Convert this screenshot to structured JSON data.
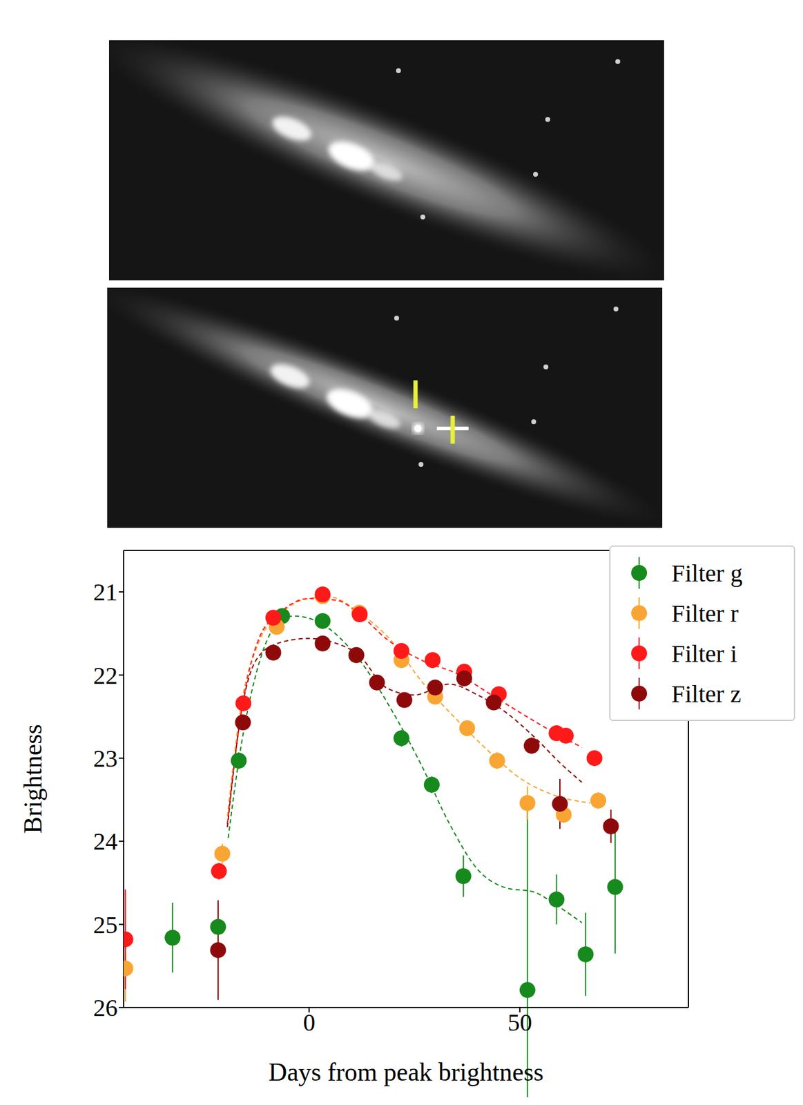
{
  "chart_data": {
    "type": "scatter",
    "x_label": "Days from peak brightness",
    "y_label": "Brightness",
    "xlim": [
      -44,
      90
    ],
    "xticks": [
      0,
      50
    ],
    "ylim": [
      26,
      20.5
    ],
    "yticks": [
      21,
      22,
      23,
      24,
      25,
      26
    ],
    "legend": "upper right",
    "series": [
      {
        "name": "Filter g",
        "color": "#168a1c",
        "marker": "o",
        "x": [
          -32.4,
          -21.6,
          -16.7,
          -6.4,
          3.2,
          11.2,
          21.9,
          29.1,
          36.6,
          51.8,
          58.7,
          65.6,
          72.6
        ],
        "values": [
          25.16,
          25.03,
          23.03,
          21.29,
          21.35,
          21.76,
          22.76,
          23.32,
          24.42,
          25.79,
          24.7,
          25.36,
          24.55
        ],
        "errors": [
          0.42,
          0.3,
          0.1,
          0.05,
          0.05,
          0.05,
          0.1,
          0.1,
          0.25,
          2.3,
          0.3,
          0.5,
          0.8
        ],
        "fit": {
          "line_style": "dashed",
          "x": [
            -19.2,
            -16.7,
            -11.9,
            -6.9,
            -3.5,
            3.2,
            11.2,
            19.9,
            26.6,
            33.3,
            40,
            46.7,
            53.3,
            58.4,
            64.7
          ],
          "values": [
            23.96,
            23.03,
            21.86,
            21.35,
            21.29,
            21.39,
            21.77,
            22.45,
            23.08,
            23.79,
            24.34,
            24.56,
            24.61,
            24.76,
            24.98
          ]
        }
      },
      {
        "name": "Filter r",
        "color": "#f9a533",
        "marker": "o",
        "x": [
          -43.6,
          -20.6,
          -7.7,
          3.2,
          11.9,
          21.9,
          29.9,
          37.5,
          44.6,
          51.8,
          60.4,
          68.6
        ],
        "values": [
          25.53,
          24.15,
          21.42,
          21.05,
          21.25,
          21.82,
          22.26,
          22.64,
          23.03,
          23.54,
          23.68,
          23.51
        ],
        "errors": [
          0.4,
          0.12,
          0.08,
          0.05,
          0.05,
          0.05,
          0.08,
          0.08,
          0.1,
          0.2,
          0.1,
          0.1
        ],
        "fit": {
          "line_style": "dashed",
          "x": [
            -19.4,
            -16.1,
            -11.9,
            -6.9,
            -0.2,
            4.8,
            11.9,
            19.9,
            26.6,
            34.9,
            43.3,
            50,
            58.4,
            66.7
          ],
          "values": [
            23.7,
            22.36,
            21.6,
            21.27,
            21.08,
            21.06,
            21.25,
            21.61,
            22.07,
            22.53,
            22.95,
            23.24,
            23.45,
            23.54
          ]
        }
      },
      {
        "name": "Filter i",
        "color": "#ff1a1a",
        "marker": "o",
        "x": [
          -43.6,
          -21.4,
          -15.6,
          -8.5,
          3.2,
          12,
          21.9,
          29.3,
          36.8,
          45,
          58.7,
          60.9,
          67.7
        ],
        "values": [
          25.18,
          24.36,
          22.34,
          21.31,
          21.03,
          21.27,
          21.71,
          21.82,
          21.96,
          22.23,
          22.7,
          22.73,
          23
        ],
        "errors": [
          0.6,
          0.1,
          0.06,
          0.05,
          0.05,
          0.05,
          0.05,
          0.05,
          0.06,
          0.08,
          0.06,
          0.06,
          0.06
        ],
        "fit": {
          "line_style": "dashed",
          "x": [
            -19.4,
            -16.1,
            -11.9,
            -6.9,
            -0.2,
            6.5,
            12,
            18.2,
            26.6,
            34.9,
            43.3,
            50,
            58.4,
            64.7
          ],
          "values": [
            23.79,
            22.45,
            21.56,
            21.25,
            21.08,
            21.1,
            21.27,
            21.56,
            21.82,
            21.98,
            22.24,
            22.45,
            22.7,
            22.87
          ]
        }
      },
      {
        "name": "Filter z",
        "color": "#8e0a0a",
        "marker": "o",
        "x": [
          -21.6,
          -15.7,
          -8.5,
          3.2,
          11.2,
          16.1,
          22.6,
          29.9,
          36.8,
          43.8,
          52.8,
          59.5,
          71.6
        ],
        "values": [
          25.31,
          22.57,
          21.73,
          21.62,
          21.76,
          22.09,
          22.3,
          22.15,
          22.04,
          22.33,
          22.85,
          23.55,
          23.82
        ],
        "errors": [
          0.6,
          0.08,
          0.05,
          0.05,
          0.05,
          0.05,
          0.05,
          0.06,
          0.08,
          0.08,
          0.1,
          0.3,
          0.2
        ],
        "fit": {
          "line_style": "dashed",
          "x": [
            -19.4,
            -16.1,
            -11.9,
            -6.9,
            -0.2,
            6.5,
            12,
            18.2,
            24.9,
            33.3,
            40,
            46.7,
            53.3,
            60,
            64.7
          ],
          "values": [
            23.83,
            22.45,
            21.77,
            21.61,
            21.56,
            21.62,
            21.77,
            22.15,
            22.24,
            22.11,
            22.24,
            22.45,
            22.74,
            23.08,
            23.29
          ]
        }
      }
    ]
  }
}
